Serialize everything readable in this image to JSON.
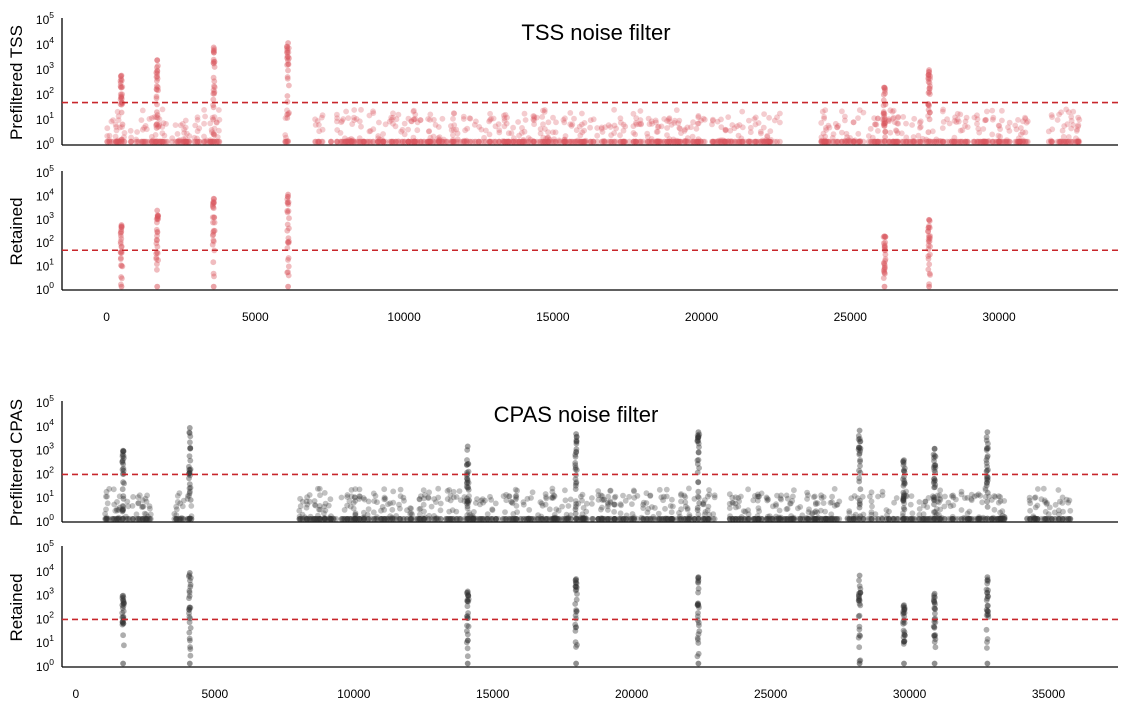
{
  "chart_data": [
    {
      "type": "scatter",
      "title": "TSS noise filter",
      "ylabel": "Prefiltered TSS",
      "yscale": "log",
      "ylim": [
        1,
        100000
      ],
      "yticks": [
        "10",
        "10",
        "10",
        "10",
        "10",
        "10"
      ],
      "ytick_exponents": [
        "0",
        "1",
        "2",
        "3",
        "4",
        "5"
      ],
      "threshold": 50,
      "color": "#d9575f",
      "mode": "dense",
      "xlim": [
        -1500,
        34000
      ],
      "spans": [
        [
          0,
          3800
        ],
        [
          6000,
          6150
        ],
        [
          7000,
          7300
        ],
        [
          7500,
          9800
        ],
        [
          9800,
          22700
        ],
        [
          24000,
          24300
        ],
        [
          24000,
          31000
        ],
        [
          31600,
          32700
        ]
      ],
      "peaks": [
        {
          "x": 500,
          "max": 600
        },
        {
          "x": 1700,
          "max": 2500
        },
        {
          "x": 3600,
          "max": 8000
        },
        {
          "x": 6100,
          "max": 12000
        },
        {
          "x": 26150,
          "max": 200
        },
        {
          "x": 27650,
          "max": 1000
        }
      ]
    },
    {
      "type": "scatter",
      "ylabel": "Retained",
      "yscale": "log",
      "ylim": [
        1,
        100000
      ],
      "yticks": [
        "10",
        "10",
        "10",
        "10",
        "10",
        "10"
      ],
      "ytick_exponents": [
        "0",
        "1",
        "2",
        "3",
        "4",
        "5"
      ],
      "xticks": [
        "0",
        "5000",
        "10000",
        "15000",
        "20000",
        "25000",
        "30000"
      ],
      "threshold": 50,
      "color": "#d9575f",
      "mode": "sparse",
      "xlim": [
        -1500,
        34000
      ],
      "peaks": [
        {
          "x": 500,
          "max": 600
        },
        {
          "x": 1700,
          "max": 2500
        },
        {
          "x": 3600,
          "max": 8000
        },
        {
          "x": 6100,
          "max": 12000
        },
        {
          "x": 26150,
          "max": 200
        },
        {
          "x": 27650,
          "max": 1000
        }
      ]
    },
    {
      "type": "scatter",
      "title": "CPAS noise filter",
      "ylabel": "Prefiltered CPAS",
      "yscale": "log",
      "ylim": [
        1,
        100000
      ],
      "yticks": [
        "10",
        "10",
        "10",
        "10",
        "10",
        "10"
      ],
      "ytick_exponents": [
        "0",
        "1",
        "2",
        "3",
        "4",
        "5"
      ],
      "threshold": 100,
      "color": "#333333",
      "mode": "dense",
      "xlim": [
        -500,
        37500
      ],
      "spans": [
        [
          1000,
          2700
        ],
        [
          3500,
          4200
        ],
        [
          8000,
          17000
        ],
        [
          17000,
          23000
        ],
        [
          23500,
          30000
        ],
        [
          30000,
          33500
        ],
        [
          34200,
          35800
        ]
      ],
      "peaks": [
        {
          "x": 1700,
          "max": 1000
        },
        {
          "x": 4100,
          "max": 9000
        },
        {
          "x": 14100,
          "max": 1500
        },
        {
          "x": 18000,
          "max": 5000
        },
        {
          "x": 22400,
          "max": 6000
        },
        {
          "x": 28200,
          "max": 7000
        },
        {
          "x": 29800,
          "max": 400
        },
        {
          "x": 30900,
          "max": 1200
        },
        {
          "x": 32800,
          "max": 6000
        }
      ]
    },
    {
      "type": "scatter",
      "ylabel": "Retained",
      "yscale": "log",
      "ylim": [
        1,
        100000
      ],
      "yticks": [
        "10",
        "10",
        "10",
        "10",
        "10",
        "10"
      ],
      "ytick_exponents": [
        "0",
        "1",
        "2",
        "3",
        "4",
        "5"
      ],
      "xticks": [
        "0",
        "5000",
        "10000",
        "15000",
        "20000",
        "25000",
        "30000",
        "35000"
      ],
      "threshold": 100,
      "color": "#333333",
      "mode": "sparse",
      "xlim": [
        -500,
        37500
      ],
      "peaks": [
        {
          "x": 1700,
          "max": 1000
        },
        {
          "x": 4100,
          "max": 9000
        },
        {
          "x": 14100,
          "max": 1500
        },
        {
          "x": 18000,
          "max": 5000
        },
        {
          "x": 22400,
          "max": 6000
        },
        {
          "x": 28200,
          "max": 7000
        },
        {
          "x": 29800,
          "max": 400
        },
        {
          "x": 30900,
          "max": 1200
        },
        {
          "x": 32800,
          "max": 6000
        }
      ]
    }
  ]
}
